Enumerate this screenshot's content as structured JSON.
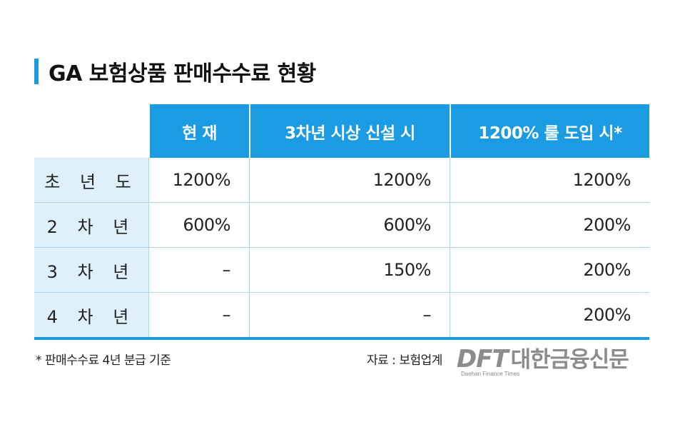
{
  "title": "GA 보험상품 판매수수료 현황",
  "colors": {
    "accent": "#1b9ce2",
    "row_label_bg": "#dff0fb",
    "brand_gray": "#8c8c8c"
  },
  "table": {
    "headers": [
      "현 재",
      "3차년 시상 신설 시",
      "1200% 룰 도입 시*"
    ],
    "rows": [
      {
        "label": "초 년 도",
        "values": [
          "1200%",
          "1200%",
          "1200%"
        ]
      },
      {
        "label": "2 차 년",
        "values": [
          "600%",
          "600%",
          "200%"
        ]
      },
      {
        "label": "3 차 년",
        "values": [
          "–",
          "150%",
          "200%"
        ]
      },
      {
        "label": "4 차 년",
        "values": [
          "–",
          "–",
          "200%"
        ]
      }
    ]
  },
  "footnote": "* 판매수수료 4년 분급 기준",
  "source": "자료 : 보험업계",
  "brand": {
    "dft": "DFT",
    "name": "대한금융신문",
    "sub": "Daehan Finance Times"
  }
}
